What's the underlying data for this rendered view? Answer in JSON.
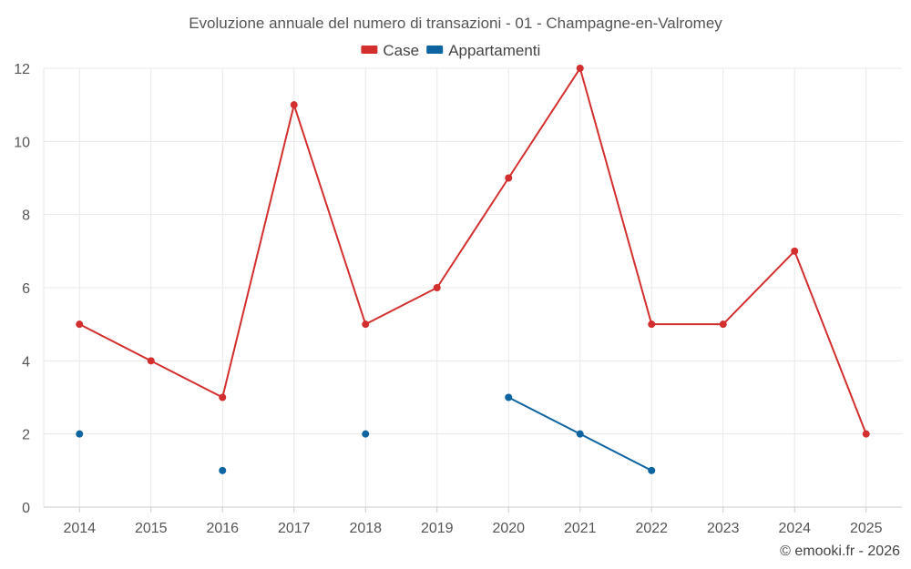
{
  "chart_data": {
    "type": "line",
    "title": "Evoluzione annuale del numero di transazioni - 01 - Champagne-en-Valromey",
    "categories": [
      "2014",
      "2015",
      "2016",
      "2017",
      "2018",
      "2019",
      "2020",
      "2021",
      "2022",
      "2023",
      "2024",
      "2025"
    ],
    "ylim": [
      0,
      12
    ],
    "yticks": [
      0,
      2,
      4,
      6,
      8,
      10,
      12
    ],
    "grid": true,
    "legend_position": "top-center",
    "series": [
      {
        "name": "Case",
        "color": "#d32f2f",
        "values": [
          5,
          4,
          3,
          11,
          5,
          6,
          9,
          12,
          5,
          5,
          7,
          2
        ]
      },
      {
        "name": "Appartamenti",
        "color": "#0d64a0",
        "values": [
          2,
          null,
          1,
          null,
          2,
          null,
          3,
          2,
          1,
          null,
          null,
          null
        ]
      }
    ]
  },
  "credit": "© emooki.fr - 2026"
}
